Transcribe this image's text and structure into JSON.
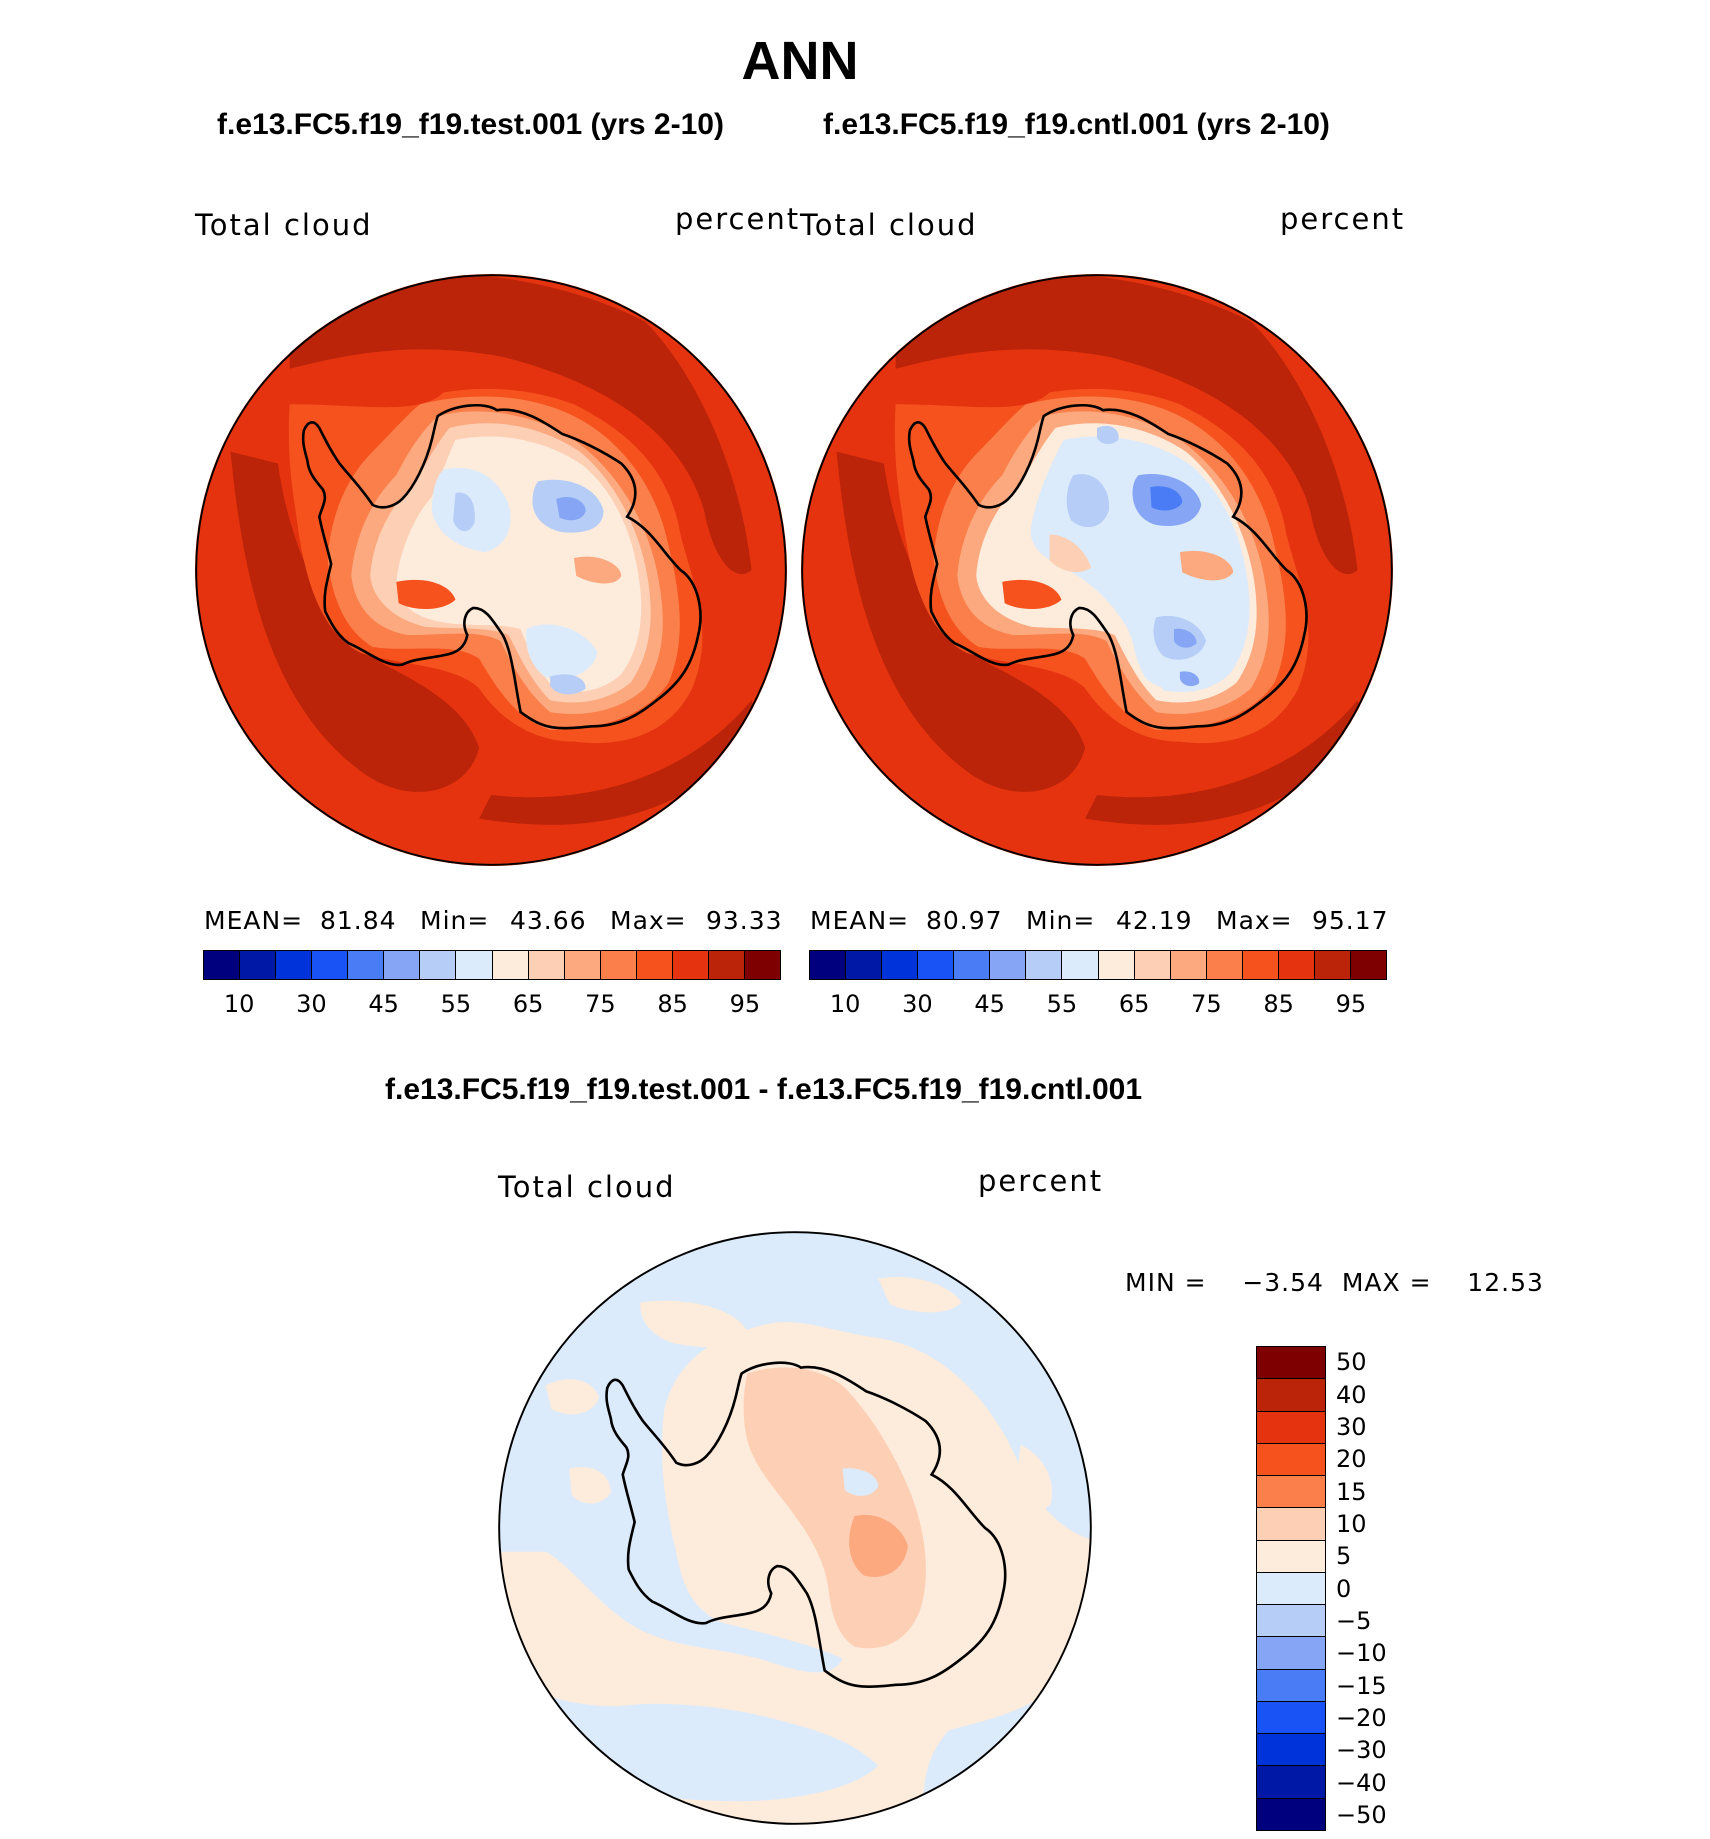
{
  "title": "ANN",
  "test_case": "f.e13.FC5.f19_f19.test.001 (yrs 2-10)",
  "cntl_case": "f.e13.FC5.f19_f19.cntl.001 (yrs 2-10)",
  "diff_title": "f.e13.FC5.f19_f19.test.001 - f.e13.FC5.f19_f19.cntl.001",
  "panels": [
    {
      "variable": "Total cloud",
      "units": "percent",
      "mean_label": "MEAN=",
      "mean": "81.84",
      "min_label": "Min=",
      "min": "43.66",
      "max_label": "Max=",
      "max": "93.33"
    },
    {
      "variable": "Total cloud",
      "units": "percent",
      "mean_label": "MEAN=",
      "mean": "80.97",
      "min_label": "Min=",
      "min": "42.19",
      "max_label": "Max=",
      "max": "95.17"
    }
  ],
  "diff_panel": {
    "variable": "Total cloud",
    "units": "percent",
    "minmax": "MIN =    −3.54  MAX =    12.53"
  },
  "field_colorbar": {
    "colors": [
      "#00007f",
      "#0018a6",
      "#0033d9",
      "#1a53f5",
      "#4a7cf5",
      "#86a6f5",
      "#b5cdf7",
      "#dcebfb",
      "#fdebdc",
      "#fdd0b6",
      "#fca97f",
      "#fa7f4a",
      "#f5521e",
      "#e53310",
      "#bb2408",
      "#7f0000"
    ],
    "ticks": [
      "10",
      "30",
      "45",
      "55",
      "65",
      "75",
      "85",
      "95"
    ]
  },
  "diff_colorbar": {
    "colors": [
      "#7f0000",
      "#bb2408",
      "#e53310",
      "#f5521e",
      "#fa7f4a",
      "#fdd0b6",
      "#fdebdc",
      "#dcebfb",
      "#b5cdf7",
      "#86a6f5",
      "#4a7cf5",
      "#1a53f5",
      "#0033d9",
      "#0018a6",
      "#00007f"
    ],
    "ticks": [
      "50",
      "40",
      "30",
      "20",
      "15",
      "10",
      "5",
      "0",
      "−5",
      "−10",
      "−15",
      "−20",
      "−30",
      "−40",
      "−50"
    ]
  }
}
